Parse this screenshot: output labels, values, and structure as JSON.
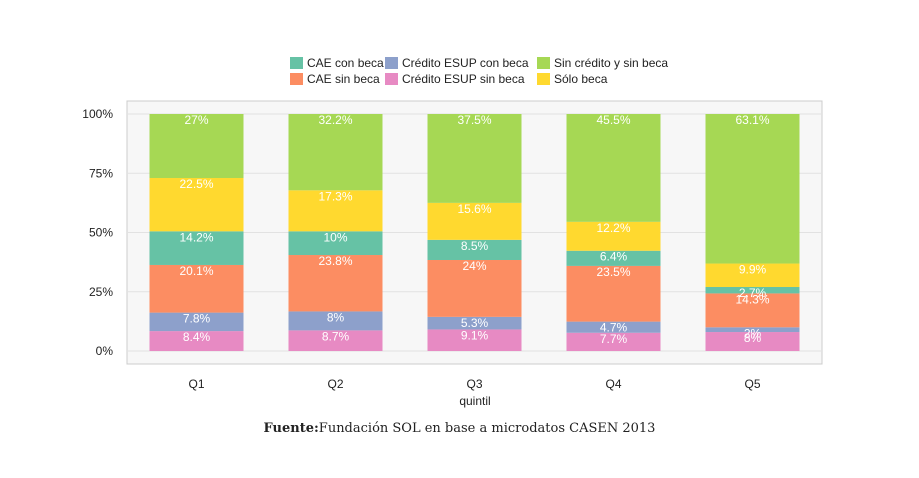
{
  "chart_data": {
    "type": "bar",
    "stacked": true,
    "percent": true,
    "categories": [
      "Q1",
      "Q2",
      "Q3",
      "Q4",
      "Q5"
    ],
    "xlabel": "quintil",
    "ylabel": "",
    "ylim": [
      0,
      100
    ],
    "yticks": [
      "0%",
      "25%",
      "50%",
      "75%",
      "100%"
    ],
    "grid": true,
    "legend_position": "top",
    "series": [
      {
        "name": "Crédito ESUP sin beca",
        "color": "#e78ac3",
        "values": [
          8.4,
          8.7,
          9.1,
          7.7,
          8
        ],
        "labels": [
          "8.4%",
          "8.7%",
          "9.1%",
          "7.7%",
          "8%"
        ]
      },
      {
        "name": "Crédito ESUP con beca",
        "color": "#8da0cb",
        "values": [
          7.8,
          8,
          5.3,
          4.7,
          2
        ],
        "labels": [
          "7.8%",
          "8%",
          "5.3%",
          "4.7%",
          "2%"
        ]
      },
      {
        "name": "CAE sin beca",
        "color": "#fc8d62",
        "values": [
          20.1,
          23.8,
          24,
          23.5,
          14.3
        ],
        "labels": [
          "20.1%",
          "23.8%",
          "24%",
          "23.5%",
          "14.3%"
        ]
      },
      {
        "name": "CAE con beca",
        "color": "#66c2a5",
        "values": [
          14.2,
          10,
          8.5,
          6.4,
          2.7
        ],
        "labels": [
          "14.2%",
          "10%",
          "8.5%",
          "6.4%",
          "2.7%"
        ]
      },
      {
        "name": "Sólo beca",
        "color": "#ffd92f",
        "values": [
          22.5,
          17.3,
          15.6,
          12.2,
          9.9
        ],
        "labels": [
          "22.5%",
          "17.3%",
          "15.6%",
          "12.2%",
          "9.9%"
        ]
      },
      {
        "name": "Sin crédito y sin beca",
        "color": "#a6d854",
        "values": [
          27,
          32.2,
          37.5,
          45.5,
          63.1
        ],
        "labels": [
          "27%",
          "32.2%",
          "37.5%",
          "45.5%",
          "63.1%"
        ]
      }
    ],
    "legend": [
      {
        "name": "CAE con beca",
        "color": "#66c2a5"
      },
      {
        "name": "Crédito ESUP con beca",
        "color": "#8da0cb"
      },
      {
        "name": "Sin crédito y sin beca",
        "color": "#a6d854"
      },
      {
        "name": "CAE sin beca",
        "color": "#fc8d62"
      },
      {
        "name": "Crédito ESUP sin beca",
        "color": "#e78ac3"
      },
      {
        "name": "Sólo beca",
        "color": "#ffd92f"
      }
    ]
  },
  "caption": {
    "bold": "Fuente:",
    "text": "Fundación SOL en base a microdatos CASEN 2013"
  }
}
